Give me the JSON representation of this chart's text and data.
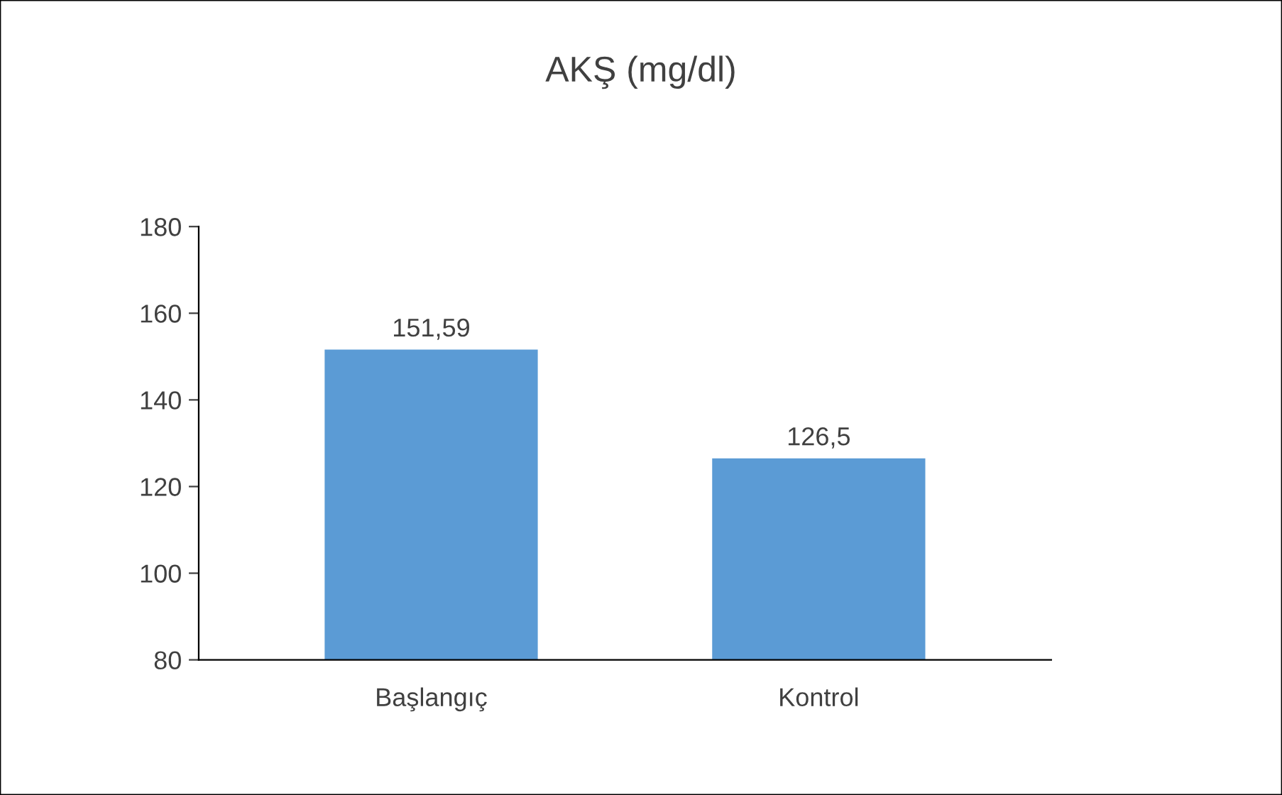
{
  "chart_data": {
    "type": "bar",
    "title": "AKŞ (mg/dl)",
    "categories": [
      "Başlangıç",
      "Kontrol"
    ],
    "values": [
      151.59,
      126.5
    ],
    "value_labels": [
      "151,59",
      "126,5"
    ],
    "color": "#5b9bd5",
    "ylim": [
      80,
      180
    ],
    "yticks": [
      80,
      100,
      120,
      140,
      160,
      180
    ],
    "grid": false,
    "legend": false
  }
}
